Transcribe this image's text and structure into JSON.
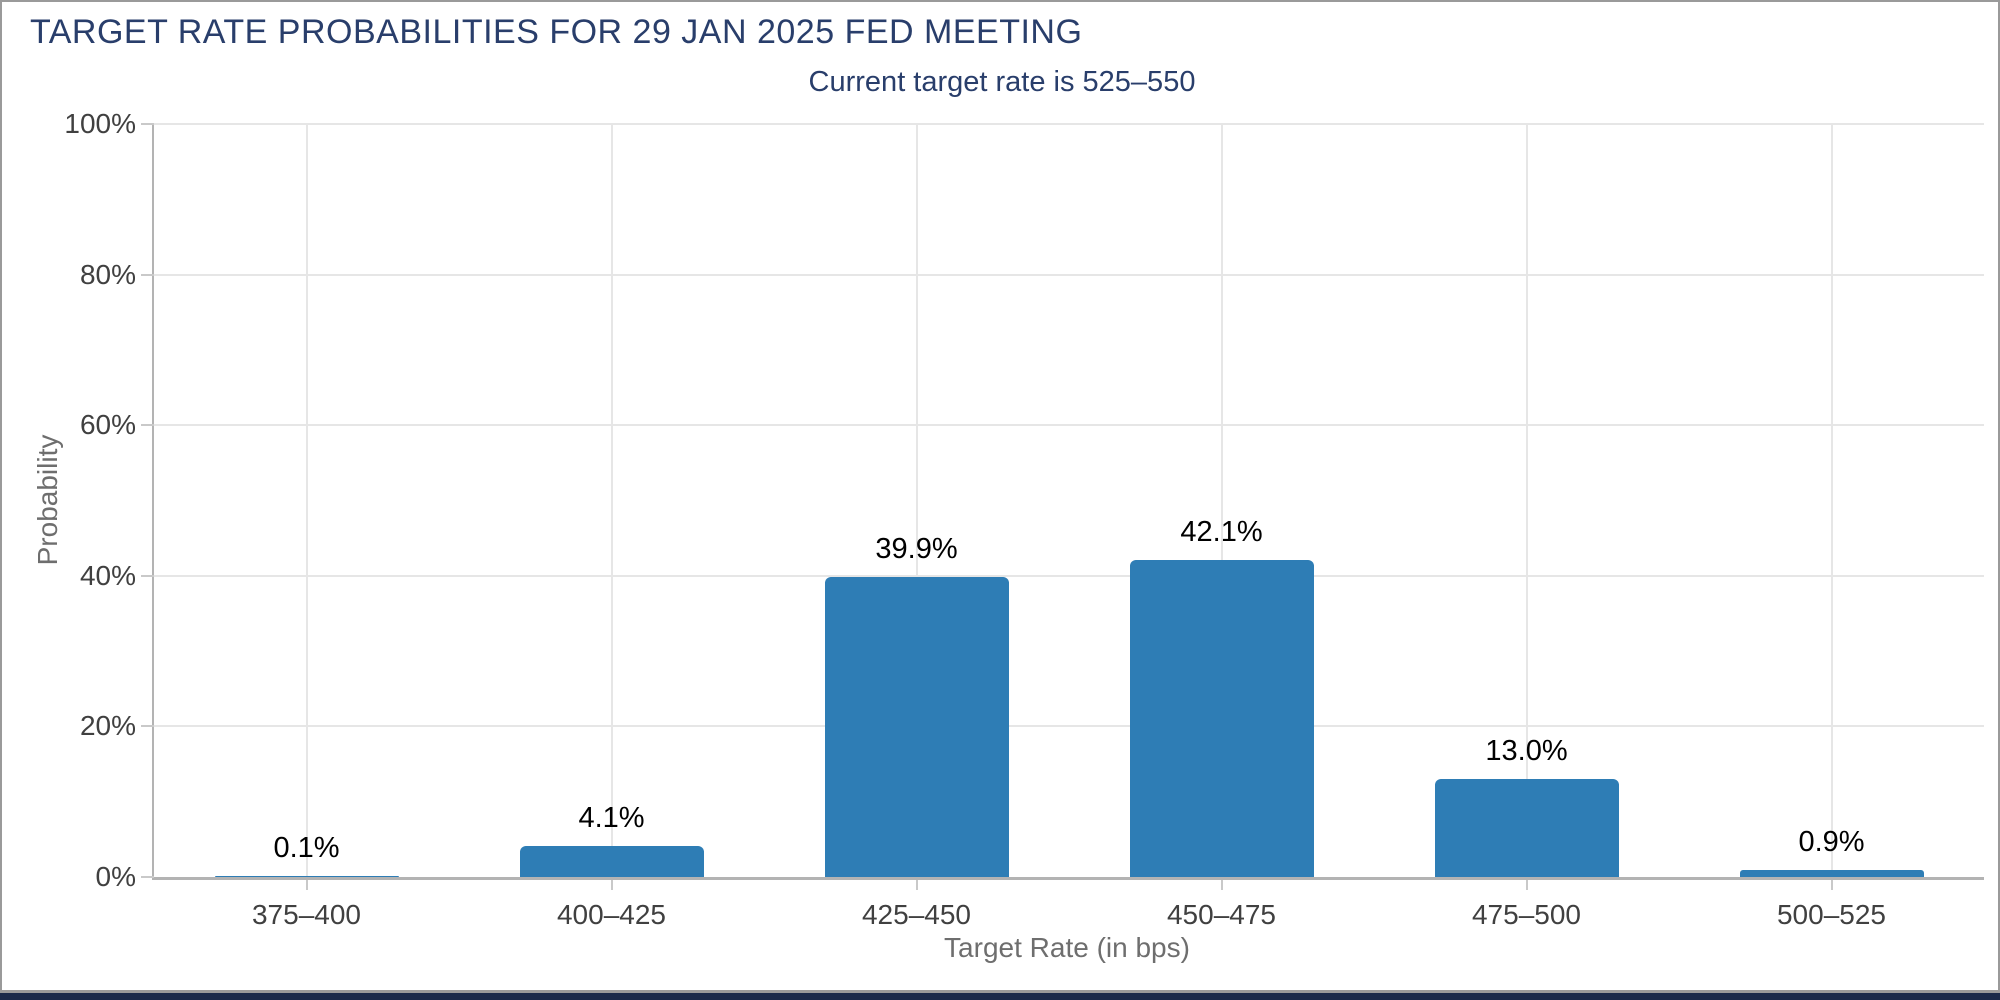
{
  "page": {
    "title": "TARGET RATE PROBABILITIES FOR 29 JAN 2025 FED MEETING",
    "subtitle": "Current target rate is 525–550"
  },
  "colors": {
    "bar": "#2e7db5",
    "title_text": "#293e6b",
    "axis_line": "#b3b3b3",
    "grid_line": "#e6e6e6",
    "tick_mark": "#c9c9c9",
    "tick_label": "#404040",
    "axis_title": "#6e6e6e",
    "data_label": "#000000",
    "frame_border": "#9a9a9a",
    "footer_strip": "#1b2a4a"
  },
  "chart_data": {
    "type": "bar",
    "title": "TARGET RATE PROBABILITIES FOR 29 JAN 2025 FED MEETING",
    "subtitle": "Current target rate is 525–550",
    "categories": [
      "375–400",
      "400–425",
      "425–450",
      "450–475",
      "475–500",
      "500–525"
    ],
    "values": [
      0.1,
      4.1,
      39.9,
      42.1,
      13.0,
      0.9
    ],
    "data_labels": [
      "0.1%",
      "4.1%",
      "39.9%",
      "42.1%",
      "13.0%",
      "0.9%"
    ],
    "xlabel": "Target Rate (in bps)",
    "ylabel": "Probability",
    "ylim": [
      0,
      100
    ],
    "yticks": [
      0,
      20,
      40,
      60,
      80,
      100
    ],
    "ytick_labels": [
      "0%",
      "20%",
      "40%",
      "60%",
      "80%",
      "100%"
    ],
    "grid": true,
    "legend": "none"
  }
}
